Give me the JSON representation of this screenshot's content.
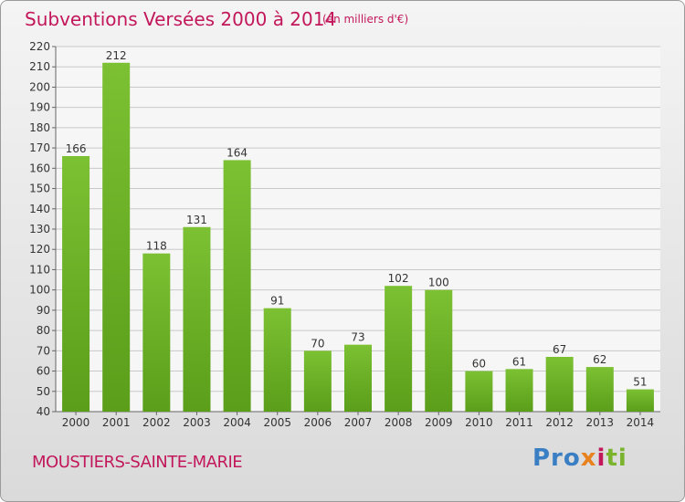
{
  "chart_data": {
    "type": "bar",
    "title": "Subventions Versées 2000 à 2014",
    "subtitle": "(en milliers d'€)",
    "categories": [
      "2000",
      "2001",
      "2002",
      "2003",
      "2004",
      "2005",
      "2006",
      "2007",
      "2008",
      "2009",
      "2010",
      "2011",
      "2012",
      "2013",
      "2014"
    ],
    "values": [
      166,
      212,
      118,
      131,
      164,
      91,
      70,
      73,
      102,
      100,
      60,
      61,
      67,
      62,
      51
    ],
    "ylim": [
      40,
      220
    ],
    "yticks": [
      40,
      50,
      60,
      70,
      80,
      90,
      100,
      110,
      120,
      130,
      140,
      150,
      160,
      170,
      180,
      190,
      200,
      210,
      220
    ],
    "grid": true,
    "bar_color": "#7cc033",
    "bar_color_dark": "#5a9e1a"
  },
  "footer": {
    "commune": "MOUSTIERS-SAINTE-MARIE",
    "logo": [
      "Pro",
      "x",
      "i",
      "ti"
    ]
  },
  "colors": {
    "title": "#c2185b",
    "grid": "#c8c8c8"
  }
}
